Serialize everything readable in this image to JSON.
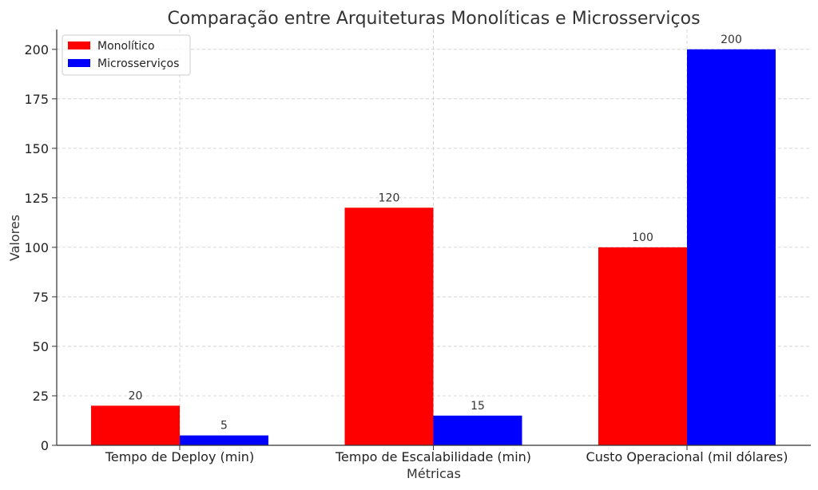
{
  "chart_data": {
    "type": "bar",
    "title": "Comparação entre Arquiteturas Monolíticas e Microsserviços",
    "xlabel": "Métricas",
    "ylabel": "Valores",
    "categories": [
      "Tempo de Deploy (min)",
      "Tempo de Escalabilidade (min)",
      "Custo Operacional (mil dólares)"
    ],
    "series": [
      {
        "name": "Monolítico",
        "values": [
          20,
          120,
          100
        ],
        "color": "#ff0000"
      },
      {
        "name": "Microsserviços",
        "values": [
          5,
          15,
          200
        ],
        "color": "#0000ff"
      }
    ],
    "ylim": [
      0,
      210
    ],
    "yticks": [
      0,
      25,
      50,
      75,
      100,
      125,
      150,
      175,
      200
    ],
    "grid": true,
    "legend_position": "top-left"
  }
}
